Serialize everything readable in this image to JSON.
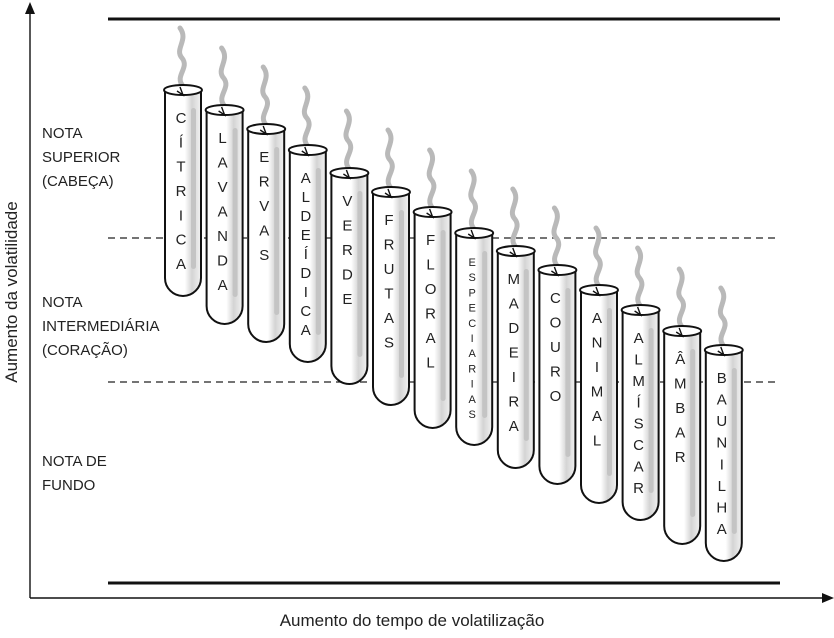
{
  "axes": {
    "x_title": "Aumento do tempo de volatilização",
    "y_title": "Aumento da volatilidade"
  },
  "zones": [
    {
      "id": "top",
      "lines": [
        "NOTA",
        "SUPERIOR",
        "(CABEÇA)"
      ]
    },
    {
      "id": "middle",
      "lines": [
        "NOTA",
        "INTERMEDIÁRIA",
        "(CORAÇÃO)"
      ]
    },
    {
      "id": "base",
      "lines": [
        "NOTA DE",
        "FUNDO"
      ]
    }
  ],
  "tubes": [
    {
      "name": "citrica",
      "label": "CÍTRICA"
    },
    {
      "name": "lavanda",
      "label": "LAVANDA"
    },
    {
      "name": "ervas",
      "label": "ERVAS"
    },
    {
      "name": "aldeidica",
      "label": "ALDEÍDICA"
    },
    {
      "name": "verde",
      "label": "VERDE"
    },
    {
      "name": "frutas",
      "label": "FRUTAS"
    },
    {
      "name": "floral",
      "label": "FLORAL"
    },
    {
      "name": "especiarias",
      "label": "ESPECIARIAS"
    },
    {
      "name": "madeira",
      "label": "MADEIRA"
    },
    {
      "name": "couro",
      "label": "COURO"
    },
    {
      "name": "animal",
      "label": "ANIMAL"
    },
    {
      "name": "almiscar",
      "label": "ALMÍSCAR"
    },
    {
      "name": "ambar",
      "label": "ÂMBAR"
    },
    {
      "name": "baunilha",
      "label": "BAUNILHA"
    }
  ]
}
